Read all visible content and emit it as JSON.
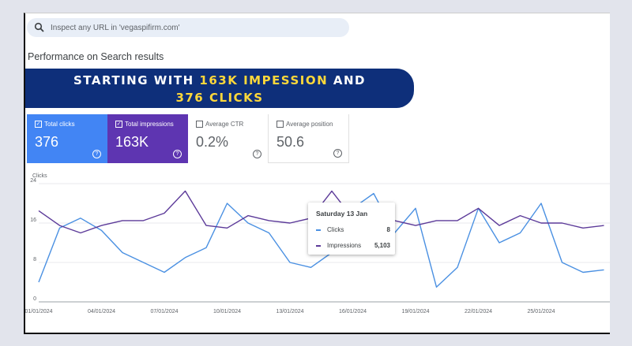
{
  "search": {
    "placeholder": "Inspect any URL in 'vegaspifirm.com'",
    "icon": "search-icon"
  },
  "page_title": "Performance on Search results",
  "banner": {
    "line1_prefix": "STARTING WITH ",
    "line1_highlight": "163K IMPESSION",
    "line1_suffix": " AND",
    "line2_highlight": "376 CLICKS",
    "highlight_color": "#ffd83a",
    "bg_color": "#0e2f7a"
  },
  "metrics": [
    {
      "label": "Total clicks",
      "value": "376",
      "checked": true,
      "color": "#4285f4"
    },
    {
      "label": "Total impressions",
      "value": "163K",
      "checked": true,
      "color": "#5e35b1"
    },
    {
      "label": "Average CTR",
      "value": "0.2%",
      "checked": false
    },
    {
      "label": "Average position",
      "value": "50.6",
      "checked": false
    }
  ],
  "tooltip": {
    "date": "Saturday 13 Jan",
    "clicks_label": "Clicks",
    "clicks_value": "8",
    "impressions_label": "Impressions",
    "impressions_value": "5,103"
  },
  "chart_data": {
    "type": "line",
    "ylabel": "Clicks",
    "yticks": [
      "24",
      "16",
      "8",
      "0"
    ],
    "ylim": [
      0,
      24
    ],
    "grid": true,
    "x_tick_labels": [
      "01/01/2024",
      "04/01/2024",
      "07/01/2024",
      "10/01/2024",
      "13/01/2024",
      "16/01/2024",
      "19/01/2024",
      "22/01/2024",
      "25/01/2024"
    ],
    "series": [
      {
        "name": "Clicks",
        "color": "#4a90e2",
        "values": [
          4,
          15,
          17,
          14.5,
          10,
          8,
          6,
          9,
          11,
          20,
          16,
          14,
          8,
          7,
          10,
          19,
          22,
          14,
          19,
          3,
          7,
          19,
          12,
          14,
          20,
          8,
          6,
          6.5
        ]
      },
      {
        "name": "Impressions",
        "color": "#5c3a99",
        "values": [
          18.5,
          15.5,
          14,
          15.5,
          16.5,
          16.5,
          18,
          22.5,
          15.5,
          15,
          17.5,
          16.5,
          16,
          17,
          22.5,
          17,
          14.5,
          16.5,
          15.5,
          16.5,
          16.5,
          19,
          15.5,
          17.5,
          16,
          16,
          15,
          15.5
        ]
      }
    ]
  }
}
